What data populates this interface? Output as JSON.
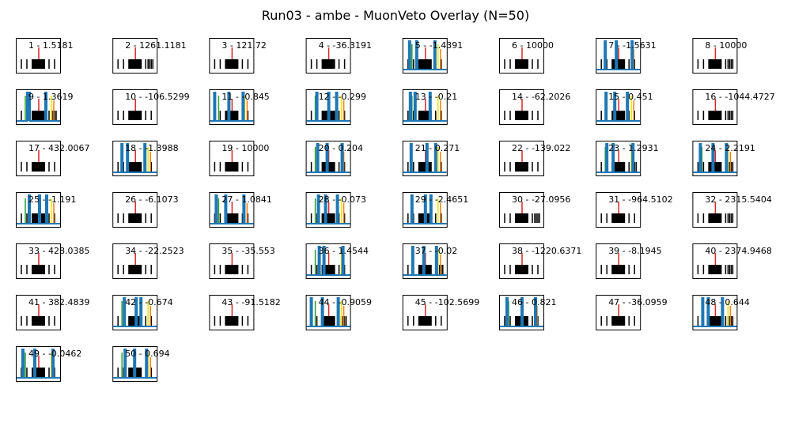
{
  "chart_data": {
    "type": "line",
    "title": "Run03 - ambe - MuonVeto Overlay (N=50)",
    "grid": false,
    "panels": [
      {
        "label": "1 - 1.5181"
      },
      {
        "label": "2 - 1261.1181"
      },
      {
        "label": "3 - 121.72"
      },
      {
        "label": "4 - -36.3191"
      },
      {
        "label": "5 - -1.4391"
      },
      {
        "label": "6 - 10000"
      },
      {
        "label": "7 - -1.5631"
      },
      {
        "label": "8 - 10000"
      },
      {
        "label": "9 - 1.3619"
      },
      {
        "label": "10 - -106.5299"
      },
      {
        "label": "11 - -0.845"
      },
      {
        "label": "12 - -0.299"
      },
      {
        "label": "13 - -0.21"
      },
      {
        "label": "14 - -62.2026"
      },
      {
        "label": "15 - 0.451"
      },
      {
        "label": "16 - -1044.4727"
      },
      {
        "label": "17 - 432.0067"
      },
      {
        "label": "18 - -1.3988"
      },
      {
        "label": "19 - 10000"
      },
      {
        "label": "20 - 0.204"
      },
      {
        "label": "21 - 0.271"
      },
      {
        "label": "22 - -139.022"
      },
      {
        "label": "23 - 1.2931"
      },
      {
        "label": "24 - 2.2191"
      },
      {
        "label": "25 - -1.191"
      },
      {
        "label": "26 - -6.1073"
      },
      {
        "label": "27 - 1.0841"
      },
      {
        "label": "28 - -0.073"
      },
      {
        "label": "29 - -2.4651"
      },
      {
        "label": "30 - -27.0956"
      },
      {
        "label": "31 - -964.5102"
      },
      {
        "label": "32 - 2315.5404"
      },
      {
        "label": "33 - 428.0385"
      },
      {
        "label": "34 - -22.2523"
      },
      {
        "label": "35 - -35.553"
      },
      {
        "label": "36 - 1.4544"
      },
      {
        "label": "37 - -0.02"
      },
      {
        "label": "38 - -1220.6371"
      },
      {
        "label": "39 - -8.1945"
      },
      {
        "label": "40 - 2374.9468"
      },
      {
        "label": "41 - 382.4839"
      },
      {
        "label": "42 - -0.674"
      },
      {
        "label": "43 - -91.5182"
      },
      {
        "label": "44 - -0.9059"
      },
      {
        "label": "45 - -102.5699"
      },
      {
        "label": "46 - 0.821"
      },
      {
        "label": "47 - -36.0959"
      },
      {
        "label": "48 - 0.644"
      },
      {
        "label": "49 - -0.0462"
      },
      {
        "label": "50 - 0.694"
      }
    ],
    "colors": {
      "trace": "#1f77b4",
      "center_marker": "#d62728",
      "marker_green": "#2ca02c",
      "marker_yellow": "#e8e800",
      "marker_orange": "#ff7f0e",
      "tick": "#000000"
    }
  }
}
